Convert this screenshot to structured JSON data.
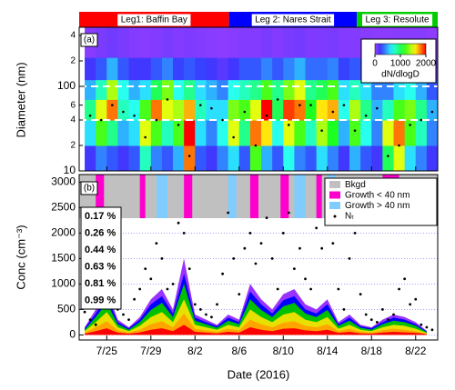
{
  "chart_data": [
    {
      "type": "heatmap",
      "label": "(a)",
      "ylabel": "Diameter (nm)",
      "ylim": [
        10,
        500
      ],
      "yscale": "log",
      "yticks": [
        10,
        {
          "value": 20,
          "label": "2"
        },
        {
          "value": 40,
          "label": "4"
        },
        {
          "value": 60,
          "label": "6"
        },
        100,
        {
          "value": 200,
          "label": "2"
        },
        {
          "value": 400,
          "label": "4"
        }
      ],
      "legs": [
        {
          "name": "Leg1: Baffin Bay",
          "start": "2016-07-22T12:00",
          "end": "2016-08-05T02:00",
          "color": "#ff0000"
        },
        {
          "name": "Leg 2: Nares Strait",
          "start": "2016-08-05T02:00",
          "end": "2016-08-16T16:00",
          "color": "#0000ff"
        },
        {
          "name": "Leg 3: Resolute",
          "start": "2016-08-16T16:00",
          "end": "2016-08-24T00:00",
          "color": "#00cc00"
        }
      ],
      "x": [
        "2016-07-23T00:00",
        "2016-07-24T00:00",
        "2016-07-25T00:00",
        "2016-07-26T00:00",
        "2016-07-27T00:00",
        "2016-07-28T00:00",
        "2016-07-29T00:00",
        "2016-07-30T00:00",
        "2016-07-31T00:00",
        "2016-08-01T00:00",
        "2016-08-02T00:00",
        "2016-08-03T00:00",
        "2016-08-04T00:00",
        "2016-08-05T00:00",
        "2016-08-06T00:00",
        "2016-08-07T00:00",
        "2016-08-08T00:00",
        "2016-08-09T00:00",
        "2016-08-10T00:00",
        "2016-08-11T00:00",
        "2016-08-12T00:00",
        "2016-08-13T00:00",
        "2016-08-14T00:00",
        "2016-08-15T00:00",
        "2016-08-16T00:00",
        "2016-08-17T00:00",
        "2016-08-18T00:00",
        "2016-08-19T00:00",
        "2016-08-20T00:00",
        "2016-08-21T00:00",
        "2016-08-22T00:00",
        "2016-08-23T00:00"
      ],
      "y_bins": [
        10,
        20,
        40,
        70,
        120,
        220,
        500
      ],
      "z": [
        [
          200,
          600,
          900,
          500,
          200,
          50
        ],
        [
          400,
          1200,
          1500,
          800,
          300,
          80
        ],
        [
          300,
          900,
          1800,
          1400,
          500,
          100
        ],
        [
          200,
          500,
          800,
          700,
          300,
          80
        ],
        [
          300,
          600,
          700,
          500,
          200,
          60
        ],
        [
          800,
          1500,
          1200,
          600,
          200,
          50
        ],
        [
          400,
          1200,
          1800,
          1000,
          300,
          60
        ],
        [
          300,
          800,
          1500,
          1300,
          400,
          80
        ],
        [
          500,
          1200,
          1400,
          700,
          250,
          60
        ],
        [
          1800,
          2000,
          1700,
          900,
          300,
          70
        ],
        [
          300,
          600,
          800,
          600,
          250,
          60
        ],
        [
          200,
          400,
          600,
          500,
          200,
          50
        ],
        [
          400,
          700,
          600,
          400,
          150,
          40
        ],
        [
          600,
          1500,
          1300,
          700,
          200,
          50
        ],
        [
          300,
          900,
          1200,
          800,
          300,
          60
        ],
        [
          1200,
          1800,
          1500,
          900,
          300,
          60
        ],
        [
          500,
          1600,
          2000,
          1200,
          400,
          80
        ],
        [
          300,
          700,
          1000,
          900,
          300,
          60
        ],
        [
          700,
          1500,
          1900,
          1300,
          400,
          80
        ],
        [
          400,
          1200,
          1800,
          1500,
          500,
          90
        ],
        [
          300,
          800,
          1100,
          900,
          350,
          70
        ],
        [
          600,
          1400,
          1600,
          1000,
          350,
          70
        ],
        [
          400,
          1100,
          1700,
          1200,
          400,
          80
        ],
        [
          200,
          500,
          700,
          600,
          250,
          60
        ],
        [
          500,
          1200,
          1400,
          800,
          300,
          60
        ],
        [
          300,
          700,
          900,
          600,
          250,
          50
        ],
        [
          200,
          400,
          500,
          400,
          150,
          40
        ],
        [
          1000,
          1500,
          800,
          400,
          150,
          40
        ],
        [
          1500,
          1800,
          1200,
          600,
          200,
          50
        ],
        [
          600,
          1200,
          1300,
          700,
          250,
          50
        ],
        [
          400,
          800,
          900,
          500,
          200,
          50
        ],
        [
          200,
          400,
          500,
          300,
          100,
          30
        ]
      ],
      "colorbar": {
        "label": "dN/dlogD",
        "clim": [
          0,
          2000
        ],
        "ticks": [
          0,
          1000,
          2000
        ]
      },
      "hlines": [
        40,
        100
      ],
      "mode_diameter": {
        "color": "#000000",
        "values": [
          45,
          40,
          60,
          50,
          45,
          25,
          40,
          70,
          35,
          15,
          60,
          55,
          40,
          25,
          50,
          20,
          45,
          70,
          35,
          60,
          60,
          30,
          50,
          60,
          30,
          45,
          55,
          15,
          20,
          35,
          40,
          50
        ]
      }
    },
    {
      "type": "area",
      "label": "(b)",
      "xlabel": "Date (2016)",
      "ylabel": "Conc (cm⁻³)",
      "xlim": [
        "2016-07-22T12:00",
        "2016-08-24T00:00"
      ],
      "xticks": [
        {
          "value": "2016-07-25T00:00",
          "label": "7/25"
        },
        {
          "value": "2016-07-29T00:00",
          "label": "7/29"
        },
        {
          "value": "2016-08-02T00:00",
          "label": "8/2"
        },
        {
          "value": "2016-08-06T00:00",
          "label": "8/6"
        },
        {
          "value": "2016-08-10T00:00",
          "label": "8/10"
        },
        {
          "value": "2016-08-14T00:00",
          "label": "8/14"
        },
        {
          "value": "2016-08-18T00:00",
          "label": "8/18"
        },
        {
          "value": "2016-08-22T00:00",
          "label": "8/22"
        }
      ],
      "ylim": [
        -100,
        3150
      ],
      "yticks": [
        0,
        500,
        1000,
        1500,
        2000,
        2500,
        3000
      ],
      "grid": true,
      "x": [
        "2016-07-23T00:00",
        "2016-07-24T00:00",
        "2016-07-25T00:00",
        "2016-07-26T00:00",
        "2016-07-27T00:00",
        "2016-07-28T00:00",
        "2016-07-29T00:00",
        "2016-07-30T00:00",
        "2016-07-31T00:00",
        "2016-08-01T00:00",
        "2016-08-02T00:00",
        "2016-08-03T00:00",
        "2016-08-04T00:00",
        "2016-08-05T00:00",
        "2016-08-06T00:00",
        "2016-08-07T00:00",
        "2016-08-08T00:00",
        "2016-08-09T00:00",
        "2016-08-10T00:00",
        "2016-08-11T00:00",
        "2016-08-12T00:00",
        "2016-08-13T00:00",
        "2016-08-14T00:00",
        "2016-08-15T00:00",
        "2016-08-16T00:00",
        "2016-08-17T00:00",
        "2016-08-18T00:00",
        "2016-08-19T00:00",
        "2016-08-20T00:00",
        "2016-08-21T00:00",
        "2016-08-22T00:00",
        "2016-08-23T00:00"
      ],
      "series": [
        {
          "name": "0.17 %",
          "color": "#ff0000",
          "values": [
            25,
            75,
            130,
            45,
            25,
            50,
            100,
            130,
            75,
            200,
            60,
            45,
            30,
            60,
            45,
            150,
            100,
            75,
            120,
            130,
            90,
            75,
            100,
            40,
            60,
            30,
            25,
            45,
            60,
            50,
            40,
            15
          ]
        },
        {
          "name": "0.26 %",
          "color": "#ffa500",
          "values": [
            45,
            150,
            270,
            90,
            45,
            100,
            210,
            270,
            150,
            420,
            120,
            90,
            60,
            120,
            90,
            300,
            210,
            150,
            240,
            270,
            180,
            150,
            210,
            75,
            120,
            60,
            45,
            90,
            120,
            100,
            75,
            25
          ]
        },
        {
          "name": "0.44 %",
          "color": "#e8e000",
          "values": [
            75,
            250,
            450,
            150,
            75,
            180,
            350,
            450,
            250,
            700,
            200,
            150,
            100,
            200,
            150,
            500,
            350,
            250,
            400,
            450,
            300,
            250,
            350,
            120,
            200,
            100,
            75,
            150,
            200,
            180,
            120,
            40
          ]
        },
        {
          "name": "0.63 %",
          "color": "#00c000",
          "values": [
            100,
            350,
            630,
            210,
            100,
            250,
            490,
            630,
            350,
            1000,
            280,
            210,
            140,
            280,
            210,
            700,
            490,
            350,
            560,
            630,
            420,
            350,
            490,
            180,
            280,
            140,
            100,
            210,
            280,
            250,
            180,
            55
          ]
        },
        {
          "name": "0.81 %",
          "color": "#0000ff",
          "values": [
            130,
            420,
            760,
            250,
            130,
            300,
            600,
            760,
            420,
            1200,
            340,
            250,
            170,
            340,
            250,
            850,
            600,
            420,
            680,
            760,
            500,
            420,
            600,
            210,
            340,
            170,
            130,
            250,
            340,
            300,
            210,
            70
          ]
        },
        {
          "name": "0.99 %",
          "color": "#9933ff",
          "values": [
            150,
            500,
            900,
            300,
            150,
            350,
            700,
            900,
            500,
            1500,
            400,
            300,
            200,
            400,
            300,
            1000,
            700,
            500,
            800,
            900,
            600,
            500,
            700,
            250,
            400,
            200,
            150,
            300,
            400,
            350,
            250,
            80
          ]
        }
      ],
      "scatter": {
        "name": "Nₜ",
        "color": "#000000",
        "x": [
          "2016-07-23T00:00",
          "2016-07-23T12:00",
          "2016-07-24T00:00",
          "2016-07-24T12:00",
          "2016-07-25T00:00",
          "2016-07-25T12:00",
          "2016-07-26T00:00",
          "2016-07-26T12:00",
          "2016-07-27T00:00",
          "2016-07-27T12:00",
          "2016-07-28T00:00",
          "2016-07-28T12:00",
          "2016-07-29T00:00",
          "2016-07-29T12:00",
          "2016-07-30T00:00",
          "2016-07-30T12:00",
          "2016-07-31T00:00",
          "2016-07-31T12:00",
          "2016-08-01T00:00",
          "2016-08-01T12:00",
          "2016-08-02T00:00",
          "2016-08-02T12:00",
          "2016-08-03T00:00",
          "2016-08-03T12:00",
          "2016-08-04T00:00",
          "2016-08-04T12:00",
          "2016-08-05T00:00",
          "2016-08-05T12:00",
          "2016-08-06T00:00",
          "2016-08-06T12:00",
          "2016-08-07T00:00",
          "2016-08-07T12:00",
          "2016-08-08T00:00",
          "2016-08-08T12:00",
          "2016-08-09T00:00",
          "2016-08-09T12:00",
          "2016-08-10T00:00",
          "2016-08-10T12:00",
          "2016-08-11T00:00",
          "2016-08-11T12:00",
          "2016-08-12T00:00",
          "2016-08-12T12:00",
          "2016-08-13T00:00",
          "2016-08-13T12:00",
          "2016-08-14T00:00",
          "2016-08-14T12:00",
          "2016-08-15T00:00",
          "2016-08-15T12:00",
          "2016-08-16T00:00",
          "2016-08-16T12:00",
          "2016-08-17T00:00",
          "2016-08-17T12:00",
          "2016-08-18T00:00",
          "2016-08-18T12:00",
          "2016-08-19T00:00",
          "2016-08-19T12:00",
          "2016-08-20T00:00",
          "2016-08-20T12:00",
          "2016-08-21T00:00",
          "2016-08-21T12:00",
          "2016-08-22T00:00",
          "2016-08-22T12:00",
          "2016-08-23T00:00",
          "2016-08-23T12:00"
        ],
        "values": [
          450,
          300,
          200,
          1500,
          1200,
          900,
          500,
          400,
          300,
          700,
          900,
          1300,
          1100,
          1800,
          1500,
          900,
          1000,
          2200,
          2000,
          1300,
          600,
          500,
          400,
          350,
          600,
          1200,
          2400,
          1500,
          800,
          1700,
          2000,
          1400,
          1800,
          2300,
          1500,
          900,
          2000,
          2400,
          1300,
          1700,
          1100,
          900,
          2100,
          1700,
          2400,
          1800,
          900,
          500,
          1500,
          2000,
          800,
          400,
          300,
          250,
          500,
          300,
          400,
          900,
          1100,
          600,
          700,
          200,
          150,
          100
        ]
      },
      "classification": {
        "names": [
          "Bkgd",
          "Growth < 40 nm",
          "Growth > 40 nm"
        ],
        "colors": [
          "#c0c0c0",
          "#ff00cc",
          "#80ccff"
        ],
        "periods": [
          {
            "class": 0,
            "start": "2016-07-22T12:00",
            "end": "2016-08-24T00:00"
          },
          {
            "class": 1,
            "start": "2016-07-24T00:00",
            "end": "2016-07-24T18:00"
          },
          {
            "class": 1,
            "start": "2016-07-28T00:00",
            "end": "2016-07-28T12:00"
          },
          {
            "class": 2,
            "start": "2016-07-29T12:00",
            "end": "2016-07-30T12:00"
          },
          {
            "class": 1,
            "start": "2016-08-01T00:00",
            "end": "2016-08-01T18:00"
          },
          {
            "class": 2,
            "start": "2016-08-05T00:00",
            "end": "2016-08-05T18:00"
          },
          {
            "class": 1,
            "start": "2016-08-07T00:00",
            "end": "2016-08-07T18:00"
          },
          {
            "class": 1,
            "start": "2016-08-09T18:00",
            "end": "2016-08-10T12:00"
          },
          {
            "class": 2,
            "start": "2016-08-11T00:00",
            "end": "2016-08-12T00:00"
          },
          {
            "class": 1,
            "start": "2016-08-13T00:00",
            "end": "2016-08-13T12:00"
          },
          {
            "class": 2,
            "start": "2016-08-14T00:00",
            "end": "2016-08-14T18:00"
          },
          {
            "class": 1,
            "start": "2016-08-19T00:00",
            "end": "2016-08-20T12:00"
          }
        ]
      }
    }
  ]
}
